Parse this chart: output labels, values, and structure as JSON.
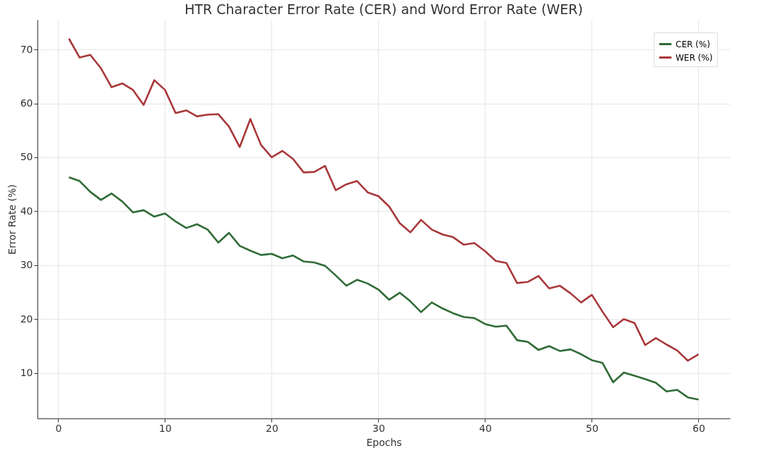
{
  "chart_data": {
    "type": "line",
    "title": "HTR Character Error Rate (CER) and Word Error Rate (WER)",
    "xlabel": "Epochs",
    "ylabel": "Error Rate (%)",
    "x": [
      1,
      2,
      3,
      4,
      5,
      6,
      7,
      8,
      9,
      10,
      11,
      12,
      13,
      14,
      15,
      16,
      17,
      18,
      19,
      20,
      21,
      22,
      23,
      24,
      25,
      26,
      27,
      28,
      29,
      30,
      31,
      32,
      33,
      34,
      35,
      36,
      37,
      38,
      39,
      40,
      41,
      42,
      43,
      44,
      45,
      46,
      47,
      48,
      49,
      50,
      51,
      52,
      53,
      54,
      55,
      56,
      57,
      58,
      59,
      60
    ],
    "series": [
      {
        "name": "CER (%)",
        "color": "#2f6b35",
        "values": [
          46.3,
          45.6,
          43.6,
          42.1,
          43.3,
          41.8,
          39.8,
          40.2,
          39,
          39.6,
          38.1,
          36.9,
          37.6,
          36.6,
          34.2,
          36,
          33.6,
          32.7,
          31.9,
          32.1,
          31.3,
          31.8,
          30.7,
          30.5,
          29.9,
          28.1,
          26.2,
          27.3,
          26.6,
          25.5,
          23.6,
          24.9,
          23.3,
          21.3,
          23.1,
          22,
          21.1,
          20.4,
          20.2,
          19.1,
          18.6,
          18.8,
          16.1,
          15.8,
          14.3,
          15,
          14.1,
          14.4,
          13.5,
          12.4,
          11.9,
          8.3,
          10.1,
          9.5,
          8.9,
          8.2,
          6.6,
          6.9,
          5.5,
          5.1
        ]
      },
      {
        "name": "WER (%)",
        "color": "#a8373a",
        "values": [
          72,
          68.5,
          69,
          66.5,
          63,
          63.7,
          62.5,
          59.7,
          64.3,
          62.5,
          58.2,
          58.7,
          57.6,
          57.9,
          58,
          55.7,
          51.9,
          57.1,
          52.3,
          50,
          51.2,
          49.7,
          47.2,
          47.3,
          48.4,
          43.9,
          45,
          45.6,
          43.5,
          42.8,
          40.9,
          37.8,
          36.1,
          38.4,
          36.6,
          35.7,
          35.2,
          33.8,
          34.1,
          32.6,
          30.8,
          30.4,
          26.7,
          26.9,
          28,
          25.7,
          26.2,
          24.8,
          23.1,
          24.5,
          21.4,
          18.5,
          20,
          19.3,
          15.2,
          16.5,
          15.3,
          14.2,
          12.3,
          13.5
        ]
      }
    ],
    "xlim": [
      -1.95,
      62.95
    ],
    "xticks": [
      0,
      10,
      20,
      30,
      40,
      50,
      60
    ],
    "ylim": [
      1.6,
      75.5
    ],
    "yticks": [
      10,
      20,
      30,
      40,
      50,
      60,
      70
    ],
    "grid": true,
    "legend": "top right",
    "marker": "none",
    "line_style": "solid"
  }
}
